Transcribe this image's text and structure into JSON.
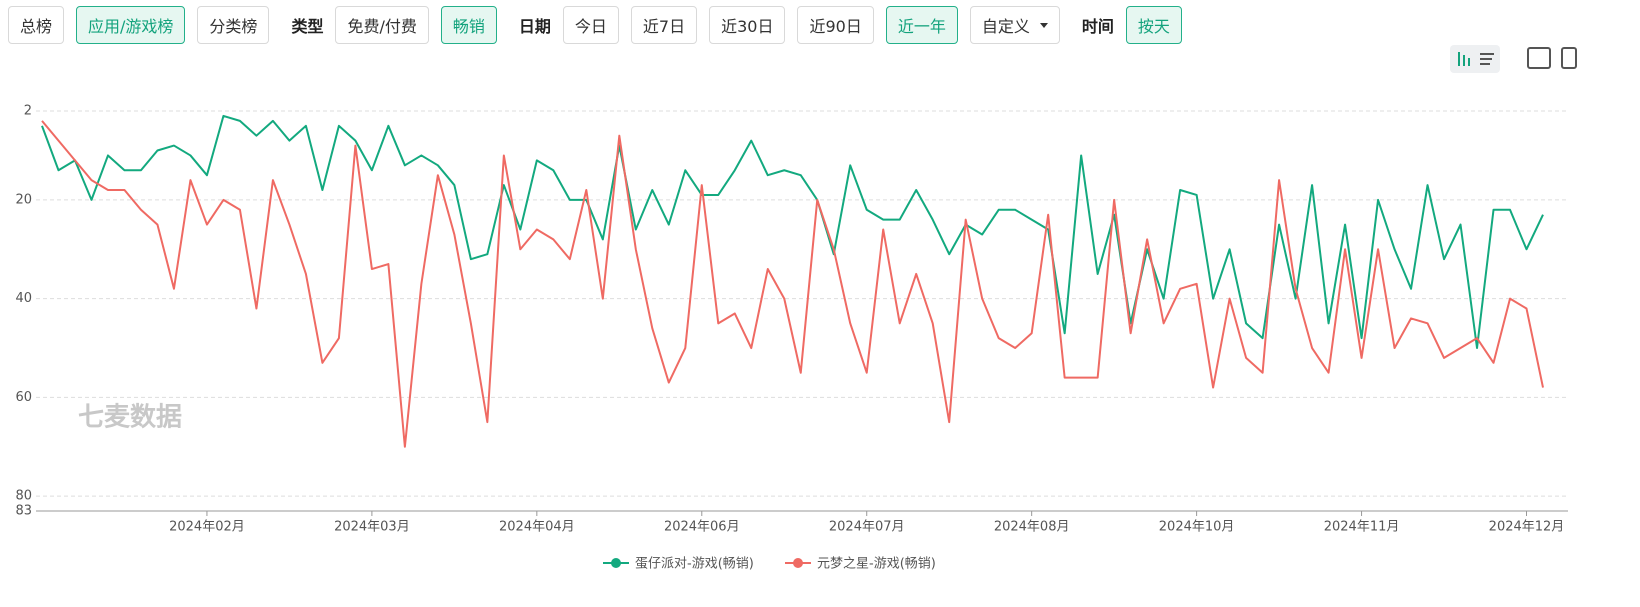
{
  "toolbar": {
    "rank": [
      {
        "label": "总榜"
      },
      {
        "label": "应用/游戏榜",
        "active": true
      },
      {
        "label": "分类榜"
      }
    ],
    "type_label": "类型",
    "type": [
      {
        "label": "免费/付费"
      },
      {
        "label": "畅销",
        "active": true
      }
    ],
    "date_label": "日期",
    "date": [
      {
        "label": "今日"
      },
      {
        "label": "近7日"
      },
      {
        "label": "近30日"
      },
      {
        "label": "近90日"
      },
      {
        "label": "近一年",
        "active": true
      },
      {
        "label": "自定义",
        "dropdown": true
      }
    ],
    "time_label": "时间",
    "time": [
      {
        "label": "按天",
        "active": true
      }
    ]
  },
  "watermark": "七麦数据",
  "chart_data": {
    "type": "line",
    "categories": [
      null,
      null,
      null,
      null,
      null,
      null,
      null,
      null,
      null,
      null,
      "2024年02月",
      null,
      null,
      null,
      null,
      null,
      null,
      null,
      null,
      null,
      "2024年03月",
      null,
      null,
      null,
      null,
      null,
      null,
      null,
      null,
      null,
      "2024年04月",
      null,
      null,
      null,
      null,
      null,
      null,
      null,
      null,
      null,
      "2024年06月",
      null,
      null,
      null,
      null,
      null,
      null,
      null,
      null,
      null,
      "2024年07月",
      null,
      null,
      null,
      null,
      null,
      null,
      null,
      null,
      null,
      "2024年08月",
      null,
      null,
      null,
      null,
      null,
      null,
      null,
      null,
      null,
      "2024年10月",
      null,
      null,
      null,
      null,
      null,
      null,
      null,
      null,
      null,
      "2024年11月",
      null,
      null,
      null,
      null,
      null,
      null,
      null,
      null,
      null,
      "2024年12月",
      null
    ],
    "series": [
      {
        "name": "蛋仔派对-游戏(畅销)",
        "color": "#13a97f",
        "values": [
          5,
          14,
          12,
          20,
          11,
          14,
          14,
          10,
          9,
          11,
          15,
          3,
          4,
          7,
          4,
          8,
          5,
          18,
          5,
          8,
          14,
          5,
          13,
          11,
          13,
          17,
          32,
          31,
          17,
          26,
          12,
          14,
          20,
          20,
          28,
          9,
          26,
          18,
          25,
          14,
          19,
          19,
          14,
          8,
          15,
          14,
          15,
          20,
          31,
          13,
          22,
          24,
          24,
          18,
          24,
          31,
          25,
          27,
          22,
          22,
          24,
          26,
          47,
          11,
          35,
          23,
          45,
          30,
          40,
          18,
          19,
          40,
          30,
          45,
          48,
          25,
          40,
          17,
          45,
          25,
          48,
          20,
          30,
          38,
          17,
          32,
          25,
          50,
          22,
          22,
          30,
          23
        ]
      },
      {
        "name": "元梦之星-游戏(畅销)",
        "color": "#ef6a63",
        "values": [
          4,
          8,
          12,
          16,
          18,
          18,
          22,
          25,
          38,
          16,
          25,
          20,
          22,
          42,
          16,
          25,
          35,
          53,
          48,
          9,
          34,
          33,
          70,
          37,
          15,
          27,
          45,
          65,
          11,
          30,
          26,
          28,
          32,
          18,
          40,
          7,
          30,
          46,
          57,
          50,
          17,
          45,
          43,
          50,
          34,
          40,
          55,
          20,
          30,
          45,
          55,
          26,
          45,
          35,
          45,
          65,
          24,
          40,
          48,
          50,
          47,
          23,
          56,
          56,
          56,
          20,
          47,
          28,
          45,
          38,
          37,
          58,
          40,
          52,
          55,
          16,
          38,
          50,
          55,
          30,
          52,
          30,
          50,
          44,
          45,
          52,
          50,
          48,
          53,
          40,
          42,
          58
        ]
      }
    ],
    "ylim": [
      2,
      83
    ],
    "yticks": [
      2,
      20,
      40,
      60,
      80,
      83
    ],
    "inverted": true,
    "grid": true,
    "legend": "bottom"
  }
}
